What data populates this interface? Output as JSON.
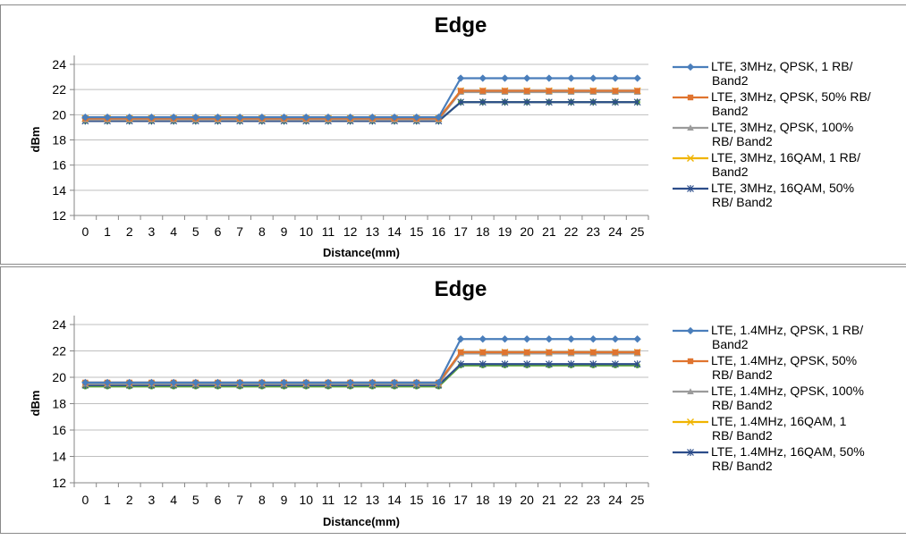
{
  "chart_data": [
    {
      "type": "line",
      "title": "Edge",
      "xlabel": "Distance(mm)",
      "ylabel": "dBm",
      "ylim": [
        12,
        24
      ],
      "yticks": [
        12,
        14,
        16,
        18,
        20,
        22,
        24
      ],
      "grid": "horizontal",
      "legend_position": "right",
      "x": [
        0,
        1,
        2,
        3,
        4,
        5,
        6,
        7,
        8,
        9,
        10,
        11,
        12,
        13,
        14,
        15,
        16,
        17,
        18,
        19,
        20,
        21,
        22,
        23,
        24,
        25
      ],
      "series": [
        {
          "name": "LTE, 3MHz, QPSK, 1 RB/ Band2",
          "legend_lines": [
            "LTE, 3MHz, QPSK, 1 RB/",
            "Band2"
          ],
          "color": "#4a7ebb",
          "marker": "diamond",
          "values": [
            19.8,
            19.8,
            19.8,
            19.8,
            19.8,
            19.8,
            19.8,
            19.8,
            19.8,
            19.8,
            19.8,
            19.8,
            19.8,
            19.8,
            19.8,
            19.8,
            19.8,
            22.9,
            22.9,
            22.9,
            22.9,
            22.9,
            22.9,
            22.9,
            22.9,
            22.9
          ]
        },
        {
          "name": "LTE, 3MHz, QPSK, 50% RB/ Band2",
          "legend_lines": [
            "LTE, 3MHz, QPSK, 50% RB/",
            "Band2"
          ],
          "color": "#e0742f",
          "marker": "square",
          "values": [
            19.7,
            19.7,
            19.7,
            19.7,
            19.7,
            19.7,
            19.7,
            19.7,
            19.7,
            19.7,
            19.7,
            19.7,
            19.7,
            19.7,
            19.7,
            19.7,
            19.7,
            21.9,
            21.9,
            21.9,
            21.9,
            21.9,
            21.9,
            21.9,
            21.9,
            21.9
          ]
        },
        {
          "name": "LTE, 3MHz, QPSK, 100% RB/ Band2",
          "legend_lines": [
            "LTE, 3MHz, QPSK, 100%",
            "RB/ Band2"
          ],
          "color": "#9b9b9b",
          "marker": "triangle",
          "values": [
            19.6,
            19.6,
            19.6,
            19.6,
            19.6,
            19.6,
            19.6,
            19.6,
            19.6,
            19.6,
            19.6,
            19.6,
            19.6,
            19.6,
            19.6,
            19.6,
            19.6,
            21.8,
            21.8,
            21.8,
            21.8,
            21.8,
            21.8,
            21.8,
            21.8,
            21.8
          ]
        },
        {
          "name": "LTE, 3MHz, 16QAM, 1 RB/ Band2",
          "legend_lines": [
            "LTE, 3MHz, 16QAM, 1 RB/",
            "Band2"
          ],
          "color": "#f0b400",
          "marker": "x",
          "values": [
            19.7,
            19.7,
            19.7,
            19.7,
            19.7,
            19.7,
            19.7,
            19.7,
            19.7,
            19.7,
            19.7,
            19.7,
            19.7,
            19.7,
            19.7,
            19.7,
            19.7,
            21.9,
            21.9,
            21.9,
            21.9,
            21.9,
            21.9,
            21.9,
            21.9,
            21.9
          ]
        },
        {
          "name": "LTE, 3MHz, 16QAM, 50% RB/ Band2",
          "legend_lines": [
            "LTE, 3MHz, 16QAM, 50%",
            "RB/ Band2"
          ],
          "color": "#2c4d8a",
          "marker": "star",
          "values": [
            19.5,
            19.5,
            19.5,
            19.5,
            19.5,
            19.5,
            19.5,
            19.5,
            19.5,
            19.5,
            19.5,
            19.5,
            19.5,
            19.5,
            19.5,
            19.5,
            19.5,
            21.0,
            21.0,
            21.0,
            21.0,
            21.0,
            21.0,
            21.0,
            21.0,
            21.0
          ]
        },
        {
          "name": "",
          "legend_lines": [],
          "color": "#5fa83a",
          "marker": "circle",
          "values": [
            19.5,
            19.5,
            19.5,
            19.5,
            19.5,
            19.5,
            19.5,
            19.5,
            19.5,
            19.5,
            19.5,
            19.5,
            19.5,
            19.5,
            19.5,
            19.5,
            19.5,
            21.0,
            21.0,
            21.0,
            21.0,
            21.0,
            21.0,
            21.0,
            21.0,
            21.0
          ]
        }
      ]
    },
    {
      "type": "line",
      "title": "Edge",
      "xlabel": "Distance(mm)",
      "ylabel": "dBm",
      "ylim": [
        12,
        24
      ],
      "yticks": [
        12,
        14,
        16,
        18,
        20,
        22,
        24
      ],
      "grid": "horizontal",
      "legend_position": "right",
      "x": [
        0,
        1,
        2,
        3,
        4,
        5,
        6,
        7,
        8,
        9,
        10,
        11,
        12,
        13,
        14,
        15,
        16,
        17,
        18,
        19,
        20,
        21,
        22,
        23,
        24,
        25
      ],
      "series": [
        {
          "name": "LTE, 1.4MHz, QPSK, 1 RB/ Band2",
          "legend_lines": [
            "LTE, 1.4MHz, QPSK, 1 RB/",
            "Band2"
          ],
          "color": "#4a7ebb",
          "marker": "diamond",
          "values": [
            19.6,
            19.6,
            19.6,
            19.6,
            19.6,
            19.6,
            19.6,
            19.6,
            19.6,
            19.6,
            19.6,
            19.6,
            19.6,
            19.6,
            19.6,
            19.6,
            19.6,
            22.9,
            22.9,
            22.9,
            22.9,
            22.9,
            22.9,
            22.9,
            22.9,
            22.9
          ]
        },
        {
          "name": "LTE, 1.4MHz, QPSK, 50% RB/ Band2",
          "legend_lines": [
            "LTE, 1.4MHz, QPSK, 50%",
            "RB/ Band2"
          ],
          "color": "#e0742f",
          "marker": "square",
          "values": [
            19.6,
            19.6,
            19.6,
            19.6,
            19.6,
            19.6,
            19.6,
            19.6,
            19.6,
            19.6,
            19.6,
            19.6,
            19.6,
            19.6,
            19.6,
            19.6,
            19.6,
            21.9,
            21.9,
            21.9,
            21.9,
            21.9,
            21.9,
            21.9,
            21.9,
            21.9
          ]
        },
        {
          "name": "LTE, 1.4MHz, QPSK, 100% RB/ Band2",
          "legend_lines": [
            "LTE, 1.4MHz, QPSK, 100%",
            "RB/ Band2"
          ],
          "color": "#9b9b9b",
          "marker": "triangle",
          "values": [
            19.5,
            19.5,
            19.5,
            19.5,
            19.5,
            19.5,
            19.5,
            19.5,
            19.5,
            19.5,
            19.5,
            19.5,
            19.5,
            19.5,
            19.5,
            19.5,
            19.5,
            21.8,
            21.8,
            21.8,
            21.8,
            21.8,
            21.8,
            21.8,
            21.8,
            21.8
          ]
        },
        {
          "name": "LTE, 1.4MHz, 16QAM, 1 RB/ Band2",
          "legend_lines": [
            "LTE, 1.4MHz, 16QAM, 1",
            "RB/ Band2"
          ],
          "color": "#f0b400",
          "marker": "x",
          "values": [
            19.5,
            19.5,
            19.5,
            19.5,
            19.5,
            19.5,
            19.5,
            19.5,
            19.5,
            19.5,
            19.5,
            19.5,
            19.5,
            19.5,
            19.5,
            19.5,
            19.5,
            21.9,
            21.9,
            21.9,
            21.9,
            21.9,
            21.9,
            21.9,
            21.9,
            21.9
          ]
        },
        {
          "name": "LTE, 1.4MHz, 16QAM, 50% RB/ Band2",
          "legend_lines": [
            "LTE, 1.4MHz, 16QAM, 50%",
            "RB/ Band2"
          ],
          "color": "#2c4d8a",
          "marker": "star",
          "values": [
            19.4,
            19.4,
            19.4,
            19.4,
            19.4,
            19.4,
            19.4,
            19.4,
            19.4,
            19.4,
            19.4,
            19.4,
            19.4,
            19.4,
            19.4,
            19.4,
            19.4,
            21.0,
            21.0,
            21.0,
            21.0,
            21.0,
            21.0,
            21.0,
            21.0,
            21.0
          ]
        },
        {
          "name": "",
          "legend_lines": [],
          "color": "#5fa83a",
          "marker": "circle",
          "values": [
            19.3,
            19.3,
            19.3,
            19.3,
            19.3,
            19.3,
            19.3,
            19.3,
            19.3,
            19.3,
            19.3,
            19.3,
            19.3,
            19.3,
            19.3,
            19.3,
            19.3,
            20.9,
            20.9,
            20.9,
            20.9,
            20.9,
            20.9,
            20.9,
            20.9,
            20.9
          ]
        }
      ]
    }
  ]
}
